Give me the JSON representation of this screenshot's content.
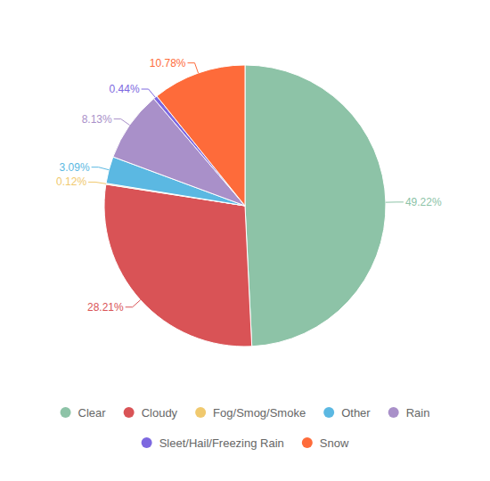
{
  "chart_data": {
    "type": "pie",
    "categories": [
      "Clear",
      "Cloudy",
      "Fog/Smog/Smoke",
      "Other",
      "Rain",
      "Sleet/Hail/Freezing Rain",
      "Snow"
    ],
    "values": [
      49.22,
      28.21,
      0.12,
      3.09,
      8.13,
      0.44,
      10.78
    ],
    "value_labels": [
      "49.22%",
      "28.21%",
      "0.12%",
      "3.09%",
      "8.13%",
      "0.44%",
      "10.78%"
    ],
    "colors": [
      "#8dc3a7",
      "#d95356",
      "#f0c96e",
      "#5bb8e2",
      "#a990c9",
      "#7d68e0",
      "#fe6b3a"
    ],
    "data_labels": true,
    "legend": "bottom"
  }
}
